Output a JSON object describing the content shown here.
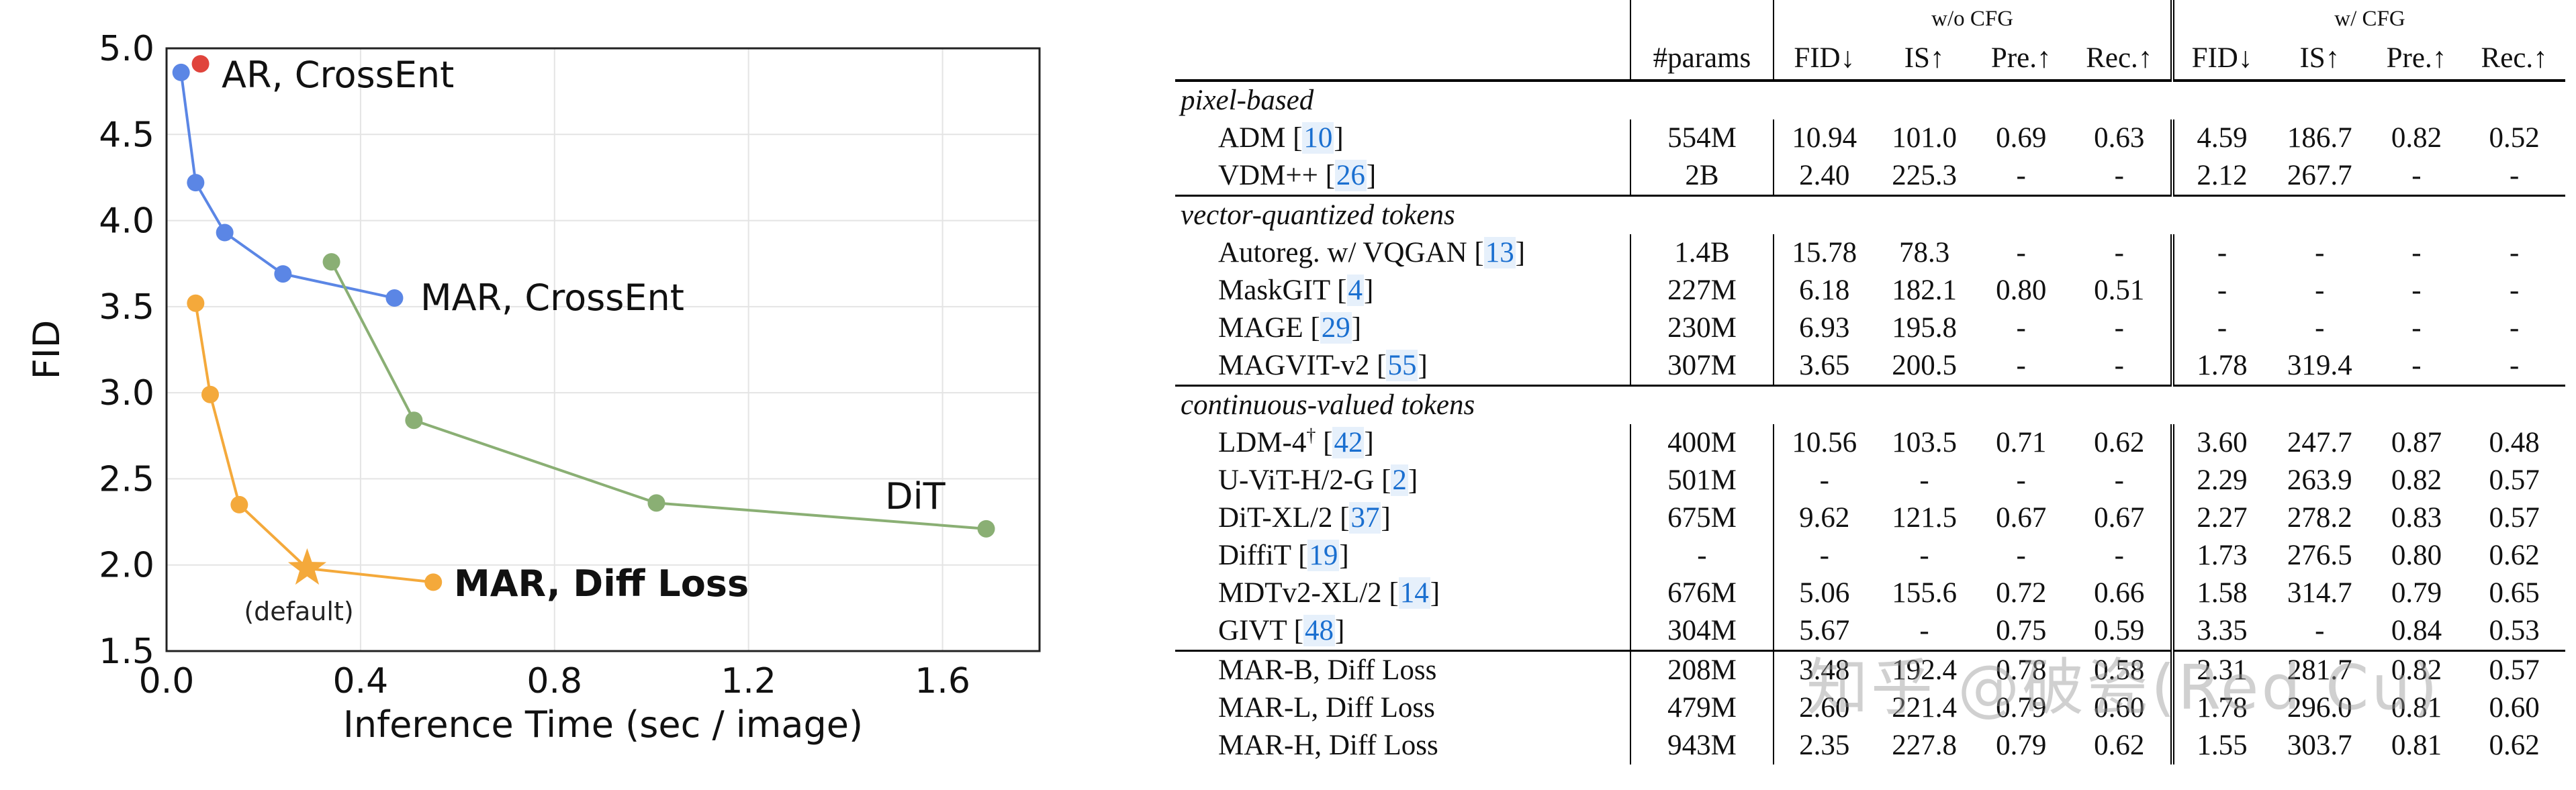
{
  "chart_data": {
    "type": "line",
    "xlabel": "Inference Time (sec / image)",
    "ylabel": "FID",
    "xlim": [
      0.0,
      1.8
    ],
    "ylim": [
      1.5,
      5.0
    ],
    "xticks": [
      "0.0",
      "0.4",
      "0.8",
      "1.2",
      "1.6"
    ],
    "yticks": [
      "1.5",
      "2.0",
      "2.5",
      "3.0",
      "3.5",
      "4.0",
      "4.5",
      "5.0"
    ],
    "grid": true,
    "series": [
      {
        "name": "AR, CrossEnt",
        "color": "#e0443c",
        "points": [
          [
            0.07,
            4.91
          ]
        ]
      },
      {
        "name": "MAR, CrossEnt",
        "color": "#5b86e5",
        "points": [
          [
            0.03,
            4.86
          ],
          [
            0.06,
            4.22
          ],
          [
            0.12,
            3.93
          ],
          [
            0.24,
            3.69
          ],
          [
            0.47,
            3.55
          ]
        ]
      },
      {
        "name": "DiT",
        "color": "#8aaf74",
        "points": [
          [
            0.34,
            3.76
          ],
          [
            0.51,
            2.84
          ],
          [
            1.01,
            2.36
          ],
          [
            1.69,
            2.21
          ]
        ]
      },
      {
        "name": "MAR, Diff Loss",
        "color": "#f4a93b",
        "points": [
          [
            0.06,
            3.52
          ],
          [
            0.09,
            2.99
          ],
          [
            0.15,
            2.35
          ],
          [
            0.29,
            1.98
          ],
          [
            0.55,
            1.9
          ]
        ],
        "default_index": 3
      }
    ],
    "annotations": [
      "(default)"
    ]
  },
  "table": {
    "group_headers": {
      "wo_cfg": "w/o CFG",
      "w_cfg": "w/ CFG"
    },
    "columns": [
      "#params",
      "FID↓",
      "IS↑",
      "Pre.↑",
      "Rec.↑",
      "FID↓",
      "IS↑",
      "Pre.↑",
      "Rec.↑"
    ],
    "sections": [
      {
        "title": "pixel-based",
        "rows": [
          {
            "name": "ADM",
            "ref": "10",
            "cells": [
              "554M",
              "10.94",
              "101.0",
              "0.69",
              "0.63",
              "4.59",
              "186.7",
              "0.82",
              "0.52"
            ]
          },
          {
            "name": "VDM++",
            "ref": "26",
            "cells": [
              "2B",
              "2.40",
              "225.3",
              "-",
              "-",
              "2.12",
              "267.7",
              "-",
              "-"
            ]
          }
        ]
      },
      {
        "title": "vector-quantized tokens",
        "rows": [
          {
            "name": "Autoreg. w/ VQGAN",
            "ref": "13",
            "cells": [
              "1.4B",
              "15.78",
              "78.3",
              "-",
              "-",
              "-",
              "-",
              "-",
              "-"
            ]
          },
          {
            "name": "MaskGIT",
            "ref": "4",
            "cells": [
              "227M",
              "6.18",
              "182.1",
              "0.80",
              "0.51",
              "-",
              "-",
              "-",
              "-"
            ]
          },
          {
            "name": "MAGE",
            "ref": "29",
            "cells": [
              "230M",
              "6.93",
              "195.8",
              "-",
              "-",
              "-",
              "-",
              "-",
              "-"
            ]
          },
          {
            "name": "MAGVIT-v2",
            "ref": "55",
            "cells": [
              "307M",
              "3.65",
              "200.5",
              "-",
              "-",
              "1.78",
              "319.4",
              "-",
              "-"
            ],
            "bold": [
              6
            ]
          }
        ]
      },
      {
        "title": "continuous-valued tokens",
        "rows": [
          {
            "name": "LDM-4",
            "sup": "†",
            "ref": "42",
            "cells": [
              "400M",
              "10.56",
              "103.5",
              "0.71",
              "0.62",
              "3.60",
              "247.7",
              "0.87",
              "0.48"
            ]
          },
          {
            "name": "U-ViT-H/2-G",
            "ref": "2",
            "cells": [
              "501M",
              "-",
              "-",
              "-",
              "-",
              "2.29",
              "263.9",
              "0.82",
              "0.57"
            ]
          },
          {
            "name": "DiT-XL/2",
            "ref": "37",
            "cells": [
              "675M",
              "9.62",
              "121.5",
              "0.67",
              "0.67",
              "2.27",
              "278.2",
              "0.83",
              "0.57"
            ]
          },
          {
            "name": "DiffiT",
            "ref": "19",
            "cells": [
              "-",
              "-",
              "-",
              "-",
              "-",
              "1.73",
              "276.5",
              "0.80",
              "0.62"
            ]
          },
          {
            "name": "MDTv2-XL/2",
            "ref": "14",
            "cells": [
              "676M",
              "5.06",
              "155.6",
              "0.72",
              "0.66",
              "1.58",
              "314.7",
              "0.79",
              "0.65"
            ]
          },
          {
            "name": "GIVT",
            "ref": "48",
            "cells": [
              "304M",
              "5.67",
              "-",
              "0.75",
              "0.59",
              "3.35",
              "-",
              "0.84",
              "0.53"
            ]
          }
        ]
      }
    ],
    "mar_rows": [
      {
        "name": "MAR-B, Diff Loss",
        "cells": [
          "208M",
          "3.48",
          "192.4",
          "0.78",
          "0.58",
          "2.31",
          "281.7",
          "0.82",
          "0.57"
        ]
      },
      {
        "name": "MAR-L, Diff Loss",
        "cells": [
          "479M",
          "2.60",
          "221.4",
          "0.79",
          "0.60",
          "1.78",
          "296.0",
          "0.81",
          "0.60"
        ]
      },
      {
        "name": "MAR-H, Diff Loss",
        "cells": [
          "943M",
          "2.35",
          "227.8",
          "0.79",
          "0.62",
          "1.55",
          "303.7",
          "0.81",
          "0.62"
        ],
        "bold": [
          1,
          2,
          5
        ]
      }
    ]
  },
  "watermark": "知乎 @破瓷(Red Cu)"
}
